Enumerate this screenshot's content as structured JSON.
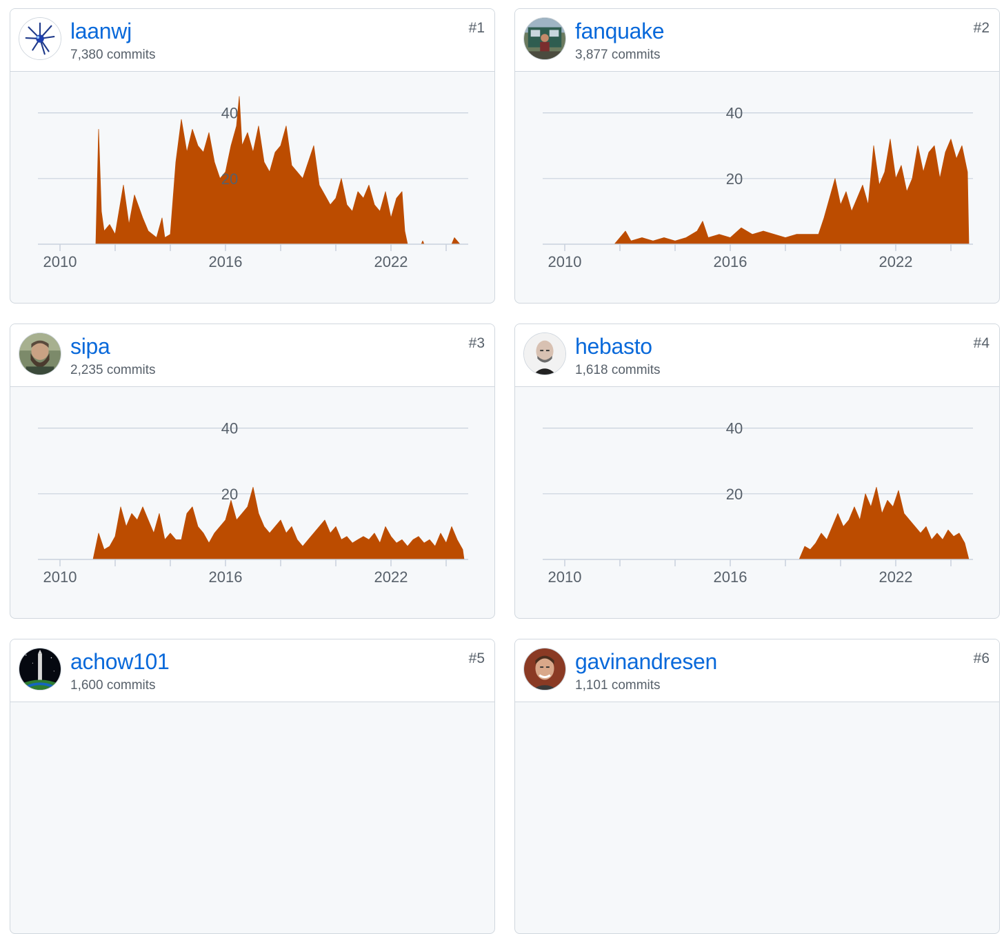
{
  "contributors": [
    {
      "username": "laanwj",
      "commits": "7,380 commits",
      "rank": "#1",
      "avatar_icon": "blue-spiky-logo-avatar",
      "chart_data": {
        "type": "area",
        "x_ticks": [
          "2010",
          "2016",
          "2022"
        ],
        "y_ticks": [
          "20",
          "40"
        ],
        "xlim": [
          2009.2,
          2024.8
        ],
        "ylim": [
          0,
          50
        ],
        "color": "#bc4c00",
        "points": [
          [
            2010.4,
            0
          ],
          [
            2011.3,
            0
          ],
          [
            2011.4,
            35
          ],
          [
            2011.5,
            10
          ],
          [
            2011.6,
            4
          ],
          [
            2011.8,
            6
          ],
          [
            2012.0,
            3
          ],
          [
            2012.3,
            18
          ],
          [
            2012.5,
            6
          ],
          [
            2012.7,
            15
          ],
          [
            2013.0,
            8
          ],
          [
            2013.2,
            4
          ],
          [
            2013.5,
            2
          ],
          [
            2013.7,
            8
          ],
          [
            2013.8,
            2
          ],
          [
            2014.0,
            3
          ],
          [
            2014.2,
            25
          ],
          [
            2014.4,
            38
          ],
          [
            2014.6,
            28
          ],
          [
            2014.8,
            35
          ],
          [
            2015.0,
            30
          ],
          [
            2015.2,
            28
          ],
          [
            2015.4,
            34
          ],
          [
            2015.6,
            25
          ],
          [
            2015.8,
            20
          ],
          [
            2016.0,
            22
          ],
          [
            2016.2,
            30
          ],
          [
            2016.4,
            36
          ],
          [
            2016.5,
            45
          ],
          [
            2016.6,
            30
          ],
          [
            2016.8,
            34
          ],
          [
            2017.0,
            28
          ],
          [
            2017.2,
            36
          ],
          [
            2017.4,
            25
          ],
          [
            2017.6,
            22
          ],
          [
            2017.8,
            28
          ],
          [
            2018.0,
            30
          ],
          [
            2018.2,
            36
          ],
          [
            2018.4,
            24
          ],
          [
            2018.6,
            22
          ],
          [
            2018.8,
            20
          ],
          [
            2019.0,
            25
          ],
          [
            2019.2,
            30
          ],
          [
            2019.4,
            18
          ],
          [
            2019.6,
            15
          ],
          [
            2019.8,
            12
          ],
          [
            2020.0,
            14
          ],
          [
            2020.2,
            20
          ],
          [
            2020.4,
            12
          ],
          [
            2020.6,
            10
          ],
          [
            2020.8,
            16
          ],
          [
            2021.0,
            14
          ],
          [
            2021.2,
            18
          ],
          [
            2021.4,
            12
          ],
          [
            2021.6,
            10
          ],
          [
            2021.8,
            16
          ],
          [
            2022.0,
            8
          ],
          [
            2022.2,
            14
          ],
          [
            2022.4,
            16
          ],
          [
            2022.5,
            4
          ],
          [
            2022.6,
            0
          ],
          [
            2023.1,
            0
          ],
          [
            2023.15,
            1
          ],
          [
            2023.2,
            0
          ],
          [
            2024.2,
            0
          ],
          [
            2024.3,
            2
          ],
          [
            2024.4,
            1
          ],
          [
            2024.5,
            0
          ]
        ]
      }
    },
    {
      "username": "fanquake",
      "commits": "3,877 commits",
      "rank": "#2",
      "avatar_icon": "person-in-front-of-van-avatar",
      "chart_data": {
        "type": "area",
        "x_ticks": [
          "2010",
          "2016",
          "2022"
        ],
        "y_ticks": [
          "20",
          "40"
        ],
        "xlim": [
          2009.2,
          2024.8
        ],
        "ylim": [
          0,
          50
        ],
        "color": "#bc4c00",
        "points": [
          [
            2011.8,
            0
          ],
          [
            2012.0,
            2
          ],
          [
            2012.2,
            4
          ],
          [
            2012.4,
            1
          ],
          [
            2012.8,
            2
          ],
          [
            2013.2,
            1
          ],
          [
            2013.6,
            2
          ],
          [
            2014.0,
            1
          ],
          [
            2014.4,
            2
          ],
          [
            2014.8,
            4
          ],
          [
            2015.0,
            7
          ],
          [
            2015.2,
            2
          ],
          [
            2015.6,
            3
          ],
          [
            2016.0,
            2
          ],
          [
            2016.4,
            5
          ],
          [
            2016.8,
            3
          ],
          [
            2017.2,
            4
          ],
          [
            2017.6,
            3
          ],
          [
            2018.0,
            2
          ],
          [
            2018.4,
            3
          ],
          [
            2018.8,
            3
          ],
          [
            2019.2,
            3
          ],
          [
            2019.4,
            8
          ],
          [
            2019.6,
            14
          ],
          [
            2019.8,
            20
          ],
          [
            2020.0,
            12
          ],
          [
            2020.2,
            16
          ],
          [
            2020.4,
            10
          ],
          [
            2020.6,
            14
          ],
          [
            2020.8,
            18
          ],
          [
            2021.0,
            12
          ],
          [
            2021.2,
            30
          ],
          [
            2021.4,
            18
          ],
          [
            2021.6,
            22
          ],
          [
            2021.8,
            32
          ],
          [
            2022.0,
            20
          ],
          [
            2022.2,
            24
          ],
          [
            2022.4,
            16
          ],
          [
            2022.6,
            20
          ],
          [
            2022.8,
            30
          ],
          [
            2023.0,
            22
          ],
          [
            2023.2,
            28
          ],
          [
            2023.4,
            30
          ],
          [
            2023.6,
            20
          ],
          [
            2023.8,
            28
          ],
          [
            2024.0,
            32
          ],
          [
            2024.2,
            26
          ],
          [
            2024.4,
            30
          ],
          [
            2024.6,
            22
          ],
          [
            2024.65,
            0
          ]
        ]
      }
    },
    {
      "username": "sipa",
      "commits": "2,235 commits",
      "rank": "#3",
      "avatar_icon": "bearded-man-avatar",
      "chart_data": {
        "type": "area",
        "x_ticks": [
          "2010",
          "2016",
          "2022"
        ],
        "y_ticks": [
          "20",
          "40"
        ],
        "xlim": [
          2009.2,
          2024.8
        ],
        "ylim": [
          0,
          50
        ],
        "color": "#bc4c00",
        "points": [
          [
            2011.2,
            0
          ],
          [
            2011.4,
            8
          ],
          [
            2011.6,
            3
          ],
          [
            2011.8,
            4
          ],
          [
            2012.0,
            7
          ],
          [
            2012.2,
            16
          ],
          [
            2012.4,
            10
          ],
          [
            2012.6,
            14
          ],
          [
            2012.8,
            12
          ],
          [
            2013.0,
            16
          ],
          [
            2013.2,
            12
          ],
          [
            2013.4,
            8
          ],
          [
            2013.6,
            14
          ],
          [
            2013.8,
            6
          ],
          [
            2014.0,
            8
          ],
          [
            2014.2,
            6
          ],
          [
            2014.4,
            6
          ],
          [
            2014.6,
            14
          ],
          [
            2014.8,
            16
          ],
          [
            2015.0,
            10
          ],
          [
            2015.2,
            8
          ],
          [
            2015.4,
            5
          ],
          [
            2015.6,
            8
          ],
          [
            2015.8,
            10
          ],
          [
            2016.0,
            12
          ],
          [
            2016.2,
            18
          ],
          [
            2016.4,
            12
          ],
          [
            2016.6,
            14
          ],
          [
            2016.8,
            16
          ],
          [
            2017.0,
            22
          ],
          [
            2017.2,
            14
          ],
          [
            2017.4,
            10
          ],
          [
            2017.6,
            8
          ],
          [
            2017.8,
            10
          ],
          [
            2018.0,
            12
          ],
          [
            2018.2,
            8
          ],
          [
            2018.4,
            10
          ],
          [
            2018.6,
            6
          ],
          [
            2018.8,
            4
          ],
          [
            2019.0,
            6
          ],
          [
            2019.2,
            8
          ],
          [
            2019.4,
            10
          ],
          [
            2019.6,
            12
          ],
          [
            2019.8,
            8
          ],
          [
            2020.0,
            10
          ],
          [
            2020.2,
            6
          ],
          [
            2020.4,
            7
          ],
          [
            2020.6,
            5
          ],
          [
            2020.8,
            6
          ],
          [
            2021.0,
            7
          ],
          [
            2021.2,
            6
          ],
          [
            2021.4,
            8
          ],
          [
            2021.6,
            5
          ],
          [
            2021.8,
            10
          ],
          [
            2022.0,
            7
          ],
          [
            2022.2,
            5
          ],
          [
            2022.4,
            6
          ],
          [
            2022.6,
            4
          ],
          [
            2022.8,
            6
          ],
          [
            2023.0,
            7
          ],
          [
            2023.2,
            5
          ],
          [
            2023.4,
            6
          ],
          [
            2023.6,
            4
          ],
          [
            2023.8,
            8
          ],
          [
            2024.0,
            5
          ],
          [
            2024.2,
            10
          ],
          [
            2024.4,
            6
          ],
          [
            2024.6,
            3
          ],
          [
            2024.65,
            0
          ]
        ]
      }
    },
    {
      "username": "hebasto",
      "commits": "1,618 commits",
      "rank": "#4",
      "avatar_icon": "bald-man-portrait-avatar",
      "chart_data": {
        "type": "area",
        "x_ticks": [
          "2010",
          "2016",
          "2022"
        ],
        "y_ticks": [
          "20",
          "40"
        ],
        "xlim": [
          2009.2,
          2024.8
        ],
        "ylim": [
          0,
          50
        ],
        "color": "#bc4c00",
        "points": [
          [
            2018.5,
            0
          ],
          [
            2018.7,
            4
          ],
          [
            2018.9,
            3
          ],
          [
            2019.1,
            5
          ],
          [
            2019.3,
            8
          ],
          [
            2019.5,
            6
          ],
          [
            2019.7,
            10
          ],
          [
            2019.9,
            14
          ],
          [
            2020.1,
            10
          ],
          [
            2020.3,
            12
          ],
          [
            2020.5,
            16
          ],
          [
            2020.7,
            12
          ],
          [
            2020.9,
            20
          ],
          [
            2021.1,
            16
          ],
          [
            2021.3,
            22
          ],
          [
            2021.5,
            14
          ],
          [
            2021.7,
            18
          ],
          [
            2021.9,
            16
          ],
          [
            2022.1,
            21
          ],
          [
            2022.3,
            14
          ],
          [
            2022.5,
            12
          ],
          [
            2022.7,
            10
          ],
          [
            2022.9,
            8
          ],
          [
            2023.1,
            10
          ],
          [
            2023.3,
            6
          ],
          [
            2023.5,
            8
          ],
          [
            2023.7,
            6
          ],
          [
            2023.9,
            9
          ],
          [
            2024.1,
            7
          ],
          [
            2024.3,
            8
          ],
          [
            2024.5,
            5
          ],
          [
            2024.65,
            0
          ]
        ]
      }
    },
    {
      "username": "achow101",
      "commits": "1,600 commits",
      "rank": "#5",
      "avatar_icon": "rocket-launch-avatar"
    },
    {
      "username": "gavinandresen",
      "commits": "1,101 commits",
      "rank": "#6",
      "avatar_icon": "smiling-man-avatar"
    }
  ]
}
